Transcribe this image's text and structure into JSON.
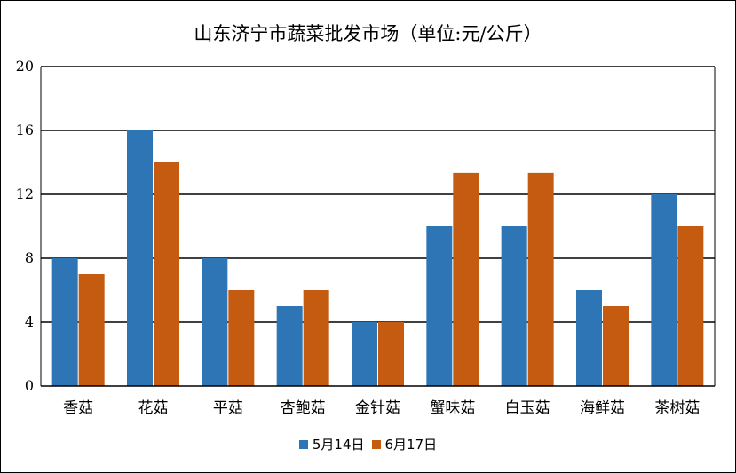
{
  "chart_data": {
    "type": "bar",
    "title": "山东济宁市蔬菜批发市场（单位:元/公斤）",
    "categories": [
      "香菇",
      "花菇",
      "平菇",
      "杏鲍菇",
      "金针菇",
      "蟹味菇",
      "白玉菇",
      "海鲜菇",
      "茶树菇"
    ],
    "series": [
      {
        "name": "5月14日",
        "color": "#2e75b6",
        "values": [
          8,
          16,
          8,
          5,
          4,
          10,
          10,
          6,
          12
        ]
      },
      {
        "name": "6月17日",
        "color": "#c55a11",
        "values": [
          7,
          14,
          6,
          6,
          4,
          13.34,
          13.34,
          5,
          10
        ]
      }
    ],
    "yticks": [
      "0",
      "4",
      "8",
      "12",
      "16",
      "20"
    ],
    "ylim": [
      0,
      20
    ],
    "xlabel": "",
    "ylabel": "",
    "grid": true,
    "legend_position": "bottom"
  }
}
